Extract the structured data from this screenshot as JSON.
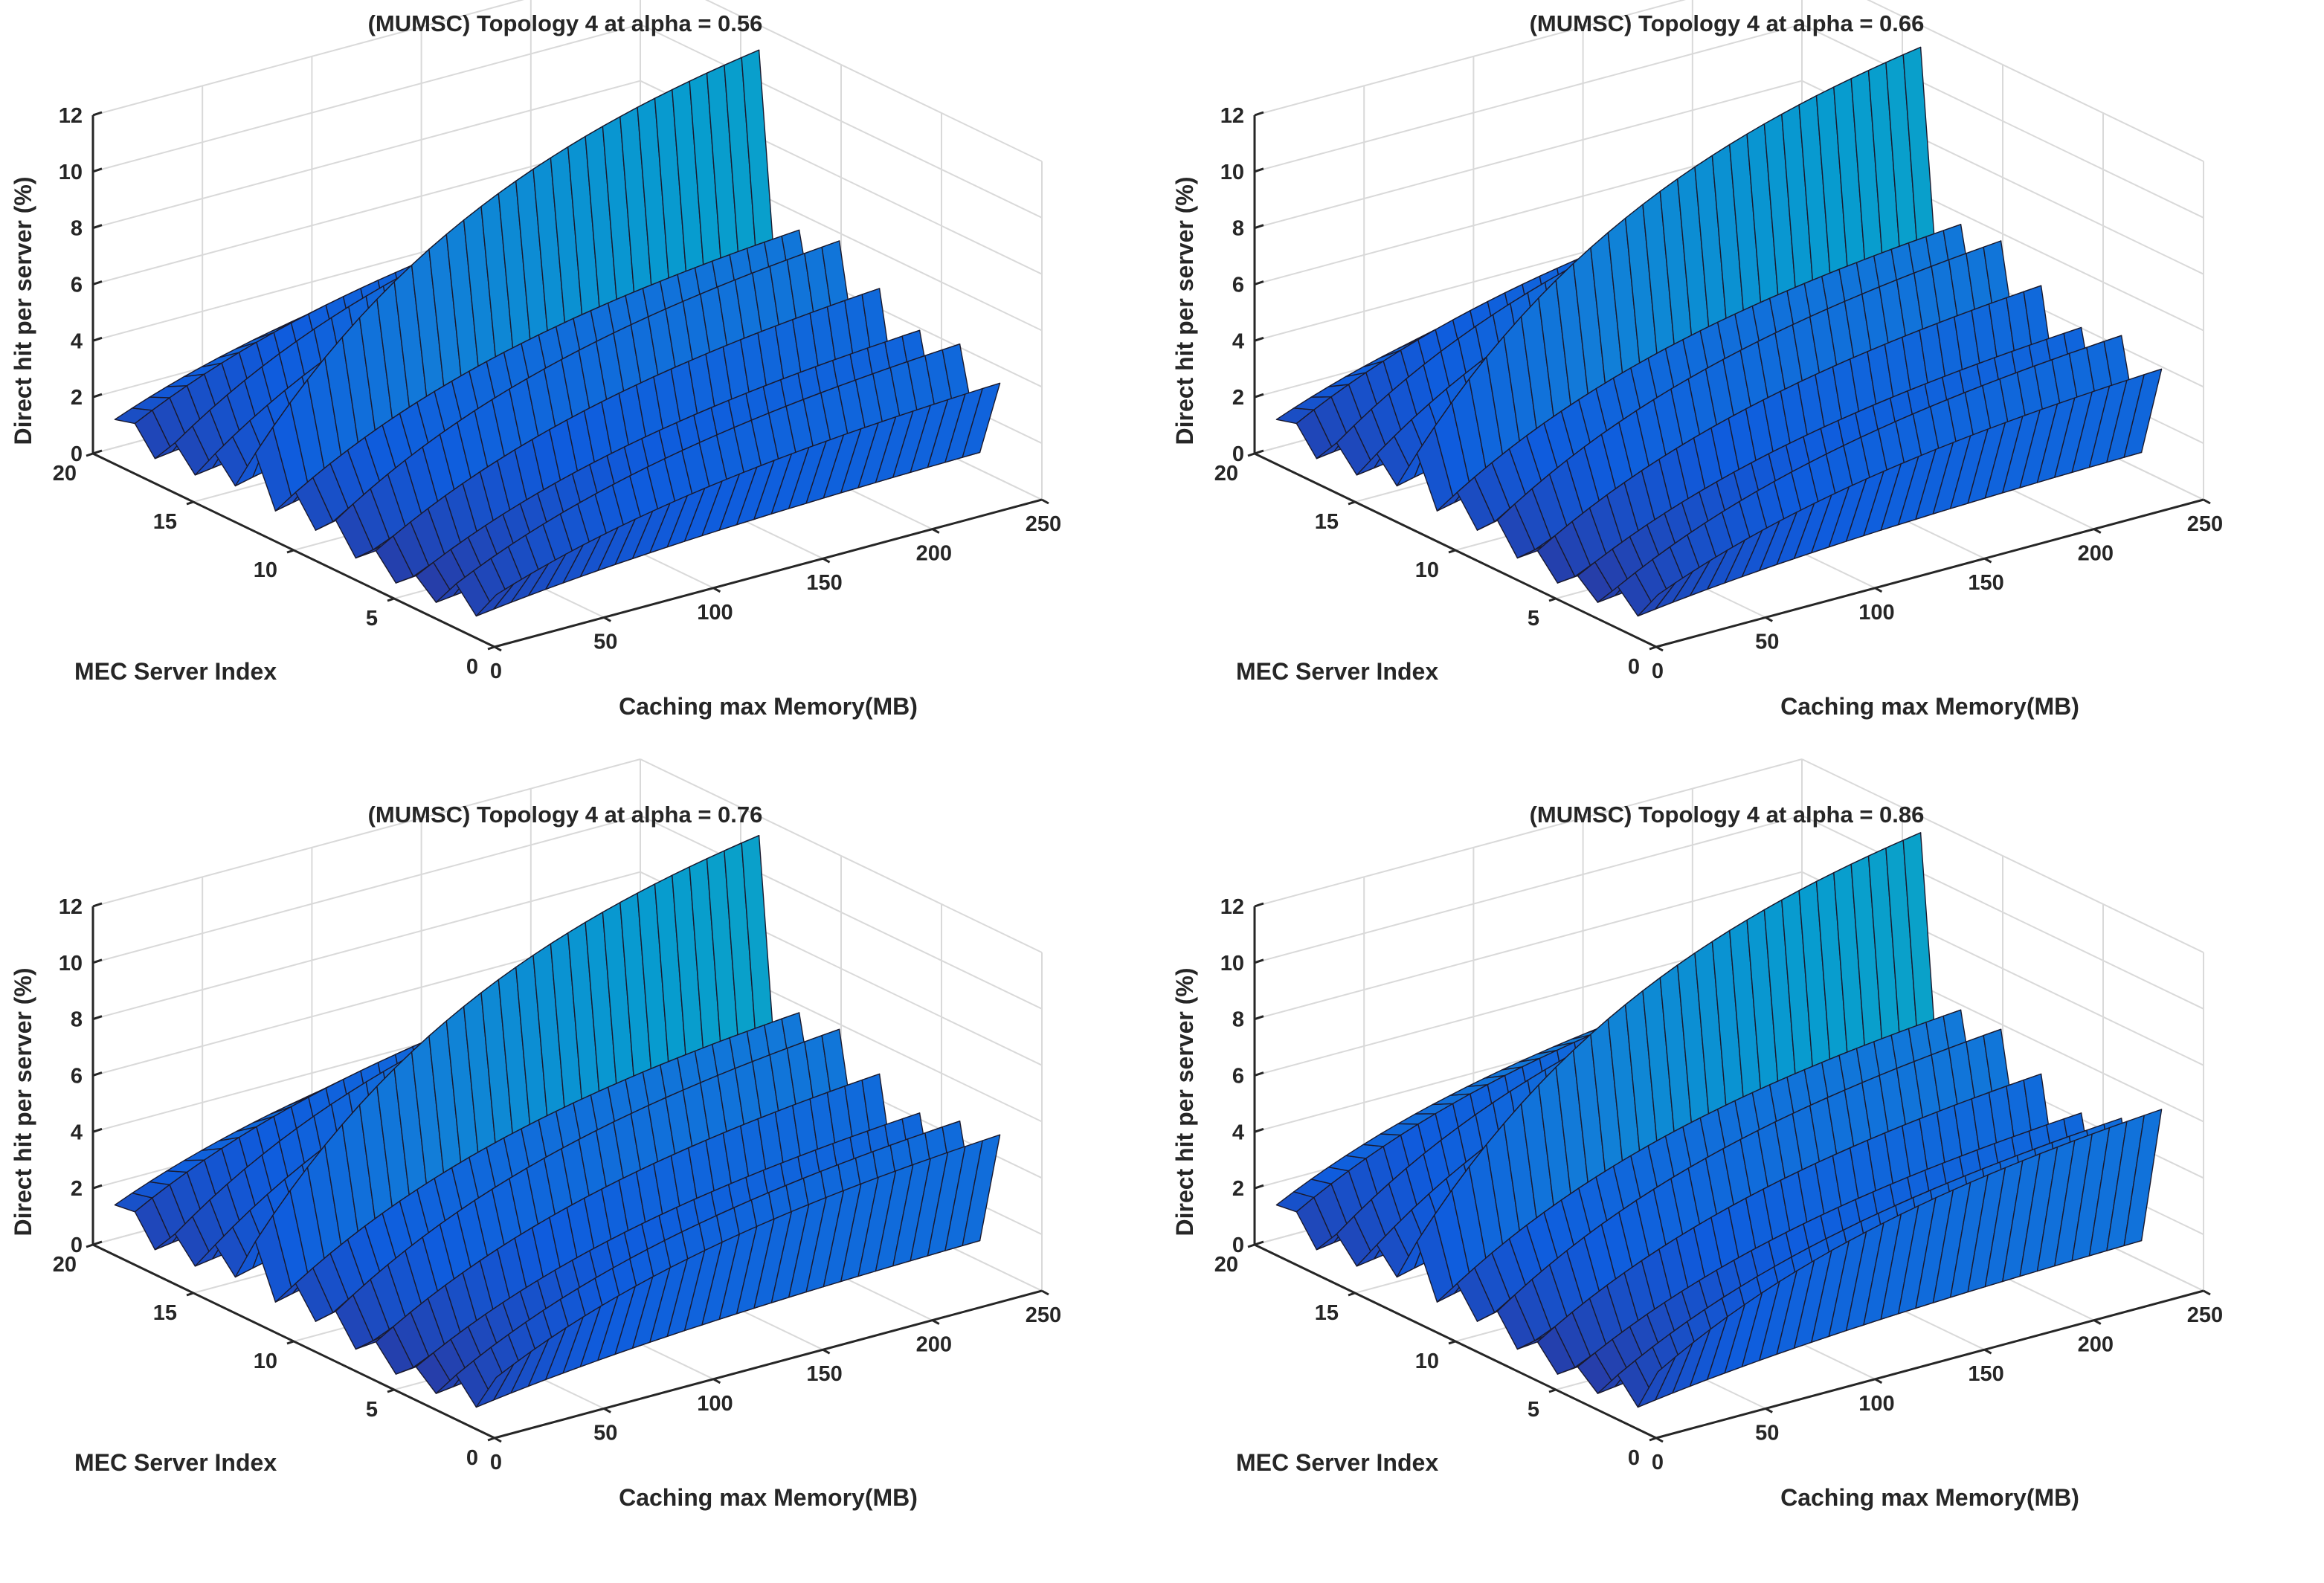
{
  "chart_data": [
    {
      "type": "surface3d",
      "title": "(MUMSC) Topology 4 at alpha = 0.56",
      "alpha": 0.56,
      "zlabel": "Direct hit per server (%)",
      "ylabel": "MEC Server Index",
      "xlabel": "Caching max Memory(MB)",
      "xlim": [
        0,
        250
      ],
      "ylim": [
        0,
        20
      ],
      "zlim": [
        0,
        12
      ],
      "xticks": [
        0,
        50,
        100,
        150,
        200,
        250
      ],
      "yticks": [
        0,
        5,
        10,
        15,
        20
      ],
      "zticks": [
        0,
        2,
        4,
        6,
        8,
        10,
        12
      ],
      "memory_MB": [
        10,
        240
      ],
      "server_profiles": [
        {
          "server": 1,
          "hit_min": 1.3,
          "hit_max": 4.0
        },
        {
          "server": 2,
          "hit_min": 0.2,
          "hit_max": 1.2
        },
        {
          "server": 3,
          "hit_min": 1.0,
          "hit_max": 4.7
        },
        {
          "server": 4,
          "hit_min": 0.0,
          "hit_max": 0.9
        },
        {
          "server": 5,
          "hit_min": 0.6,
          "hit_max": 4.5
        },
        {
          "server": 6,
          "hit_min": 0.0,
          "hit_max": 0.8
        },
        {
          "server": 7,
          "hit_min": 0.8,
          "hit_max": 5.3
        },
        {
          "server": 8,
          "hit_min": 0.2,
          "hit_max": 1.8
        },
        {
          "server": 9,
          "hit_min": 1.2,
          "hit_max": 6.3
        },
        {
          "server": 10,
          "hit_min": 0.5,
          "hit_max": 2.2
        },
        {
          "server": 11,
          "hit_min": 1.5,
          "hit_max": 6.0
        },
        {
          "server": 12,
          "hit_min": 0.5,
          "hit_max": 2.2
        },
        {
          "server": 13,
          "hit_min": 2.2,
          "hit_max": 11.7
        },
        {
          "server": 14,
          "hit_min": 0.7,
          "hit_max": 2.5
        },
        {
          "server": 15,
          "hit_min": 1.5,
          "hit_max": 7.0
        },
        {
          "server": 16,
          "hit_min": 0.4,
          "hit_max": 1.5
        },
        {
          "server": 17,
          "hit_min": 1.2,
          "hit_max": 6.6
        },
        {
          "server": 18,
          "hit_min": 0.3,
          "hit_max": 1.3
        },
        {
          "server": 19,
          "hit_min": 1.2,
          "hit_max": 5.0
        },
        {
          "server": 20,
          "hit_min": 1.0,
          "hit_max": 4.0
        }
      ]
    },
    {
      "type": "surface3d",
      "title": "(MUMSC) Topology 4 at alpha = 0.66",
      "alpha": 0.66,
      "zlabel": "Direct hit per server (%)",
      "ylabel": "MEC Server Index",
      "xlabel": "Caching max Memory(MB)",
      "xlim": [
        0,
        250
      ],
      "ylim": [
        0,
        20
      ],
      "zlim": [
        0,
        12
      ],
      "xticks": [
        0,
        50,
        100,
        150,
        200,
        250
      ],
      "yticks": [
        0,
        5,
        10,
        15,
        20
      ],
      "zticks": [
        0,
        2,
        4,
        6,
        8,
        10,
        12
      ],
      "memory_MB": [
        10,
        240
      ],
      "server_profiles": [
        {
          "server": 1,
          "hit_min": 1.3,
          "hit_max": 4.5
        },
        {
          "server": 2,
          "hit_min": 0.2,
          "hit_max": 1.2
        },
        {
          "server": 3,
          "hit_min": 0.9,
          "hit_max": 5.0
        },
        {
          "server": 4,
          "hit_min": 0.0,
          "hit_max": 0.9
        },
        {
          "server": 5,
          "hit_min": 0.6,
          "hit_max": 4.6
        },
        {
          "server": 6,
          "hit_min": 0.0,
          "hit_max": 0.8
        },
        {
          "server": 7,
          "hit_min": 0.8,
          "hit_max": 5.4
        },
        {
          "server": 8,
          "hit_min": 0.2,
          "hit_max": 1.8
        },
        {
          "server": 9,
          "hit_min": 1.2,
          "hit_max": 6.3
        },
        {
          "server": 10,
          "hit_min": 0.5,
          "hit_max": 2.2
        },
        {
          "server": 11,
          "hit_min": 1.5,
          "hit_max": 6.2
        },
        {
          "server": 12,
          "hit_min": 0.5,
          "hit_max": 2.2
        },
        {
          "server": 13,
          "hit_min": 2.2,
          "hit_max": 11.8
        },
        {
          "server": 14,
          "hit_min": 0.7,
          "hit_max": 2.5
        },
        {
          "server": 15,
          "hit_min": 1.5,
          "hit_max": 7.2
        },
        {
          "server": 16,
          "hit_min": 0.4,
          "hit_max": 1.5
        },
        {
          "server": 17,
          "hit_min": 1.2,
          "hit_max": 6.8
        },
        {
          "server": 18,
          "hit_min": 0.3,
          "hit_max": 1.3
        },
        {
          "server": 19,
          "hit_min": 1.2,
          "hit_max": 5.2
        },
        {
          "server": 20,
          "hit_min": 1.0,
          "hit_max": 4.0
        }
      ]
    },
    {
      "type": "surface3d",
      "title": "(MUMSC) Topology 4 at alpha = 0.76",
      "alpha": 0.76,
      "zlabel": "Direct hit per server (%)",
      "ylabel": "MEC Server Index",
      "xlabel": "Caching max Memory(MB)",
      "xlim": [
        0,
        250
      ],
      "ylim": [
        0,
        20
      ],
      "zlim": [
        0,
        12
      ],
      "xticks": [
        0,
        50,
        100,
        150,
        200,
        250
      ],
      "yticks": [
        0,
        5,
        10,
        15,
        20
      ],
      "zticks": [
        0,
        2,
        4,
        6,
        8,
        10,
        12
      ],
      "memory_MB": [
        10,
        240
      ],
      "server_profiles": [
        {
          "server": 1,
          "hit_min": 1.6,
          "hit_max": 5.4
        },
        {
          "server": 2,
          "hit_min": 0.2,
          "hit_max": 1.3
        },
        {
          "server": 3,
          "hit_min": 1.0,
          "hit_max": 5.2
        },
        {
          "server": 4,
          "hit_min": 0.0,
          "hit_max": 1.0
        },
        {
          "server": 5,
          "hit_min": 0.6,
          "hit_max": 4.8
        },
        {
          "server": 6,
          "hit_min": 0.0,
          "hit_max": 0.9
        },
        {
          "server": 7,
          "hit_min": 0.8,
          "hit_max": 5.5
        },
        {
          "server": 8,
          "hit_min": 0.2,
          "hit_max": 1.9
        },
        {
          "server": 9,
          "hit_min": 1.2,
          "hit_max": 6.4
        },
        {
          "server": 10,
          "hit_min": 0.5,
          "hit_max": 2.3
        },
        {
          "server": 11,
          "hit_min": 1.5,
          "hit_max": 6.3
        },
        {
          "server": 12,
          "hit_min": 0.5,
          "hit_max": 2.3
        },
        {
          "server": 13,
          "hit_min": 2.3,
          "hit_max": 11.9
        },
        {
          "server": 14,
          "hit_min": 0.7,
          "hit_max": 2.6
        },
        {
          "server": 15,
          "hit_min": 1.5,
          "hit_max": 7.3
        },
        {
          "server": 16,
          "hit_min": 0.4,
          "hit_max": 1.6
        },
        {
          "server": 17,
          "hit_min": 1.2,
          "hit_max": 6.9
        },
        {
          "server": 18,
          "hit_min": 0.3,
          "hit_max": 1.4
        },
        {
          "server": 19,
          "hit_min": 1.3,
          "hit_max": 5.4
        },
        {
          "server": 20,
          "hit_min": 1.2,
          "hit_max": 4.4
        }
      ]
    },
    {
      "type": "surface3d",
      "title": "(MUMSC) Topology 4 at alpha = 0.86",
      "alpha": 0.86,
      "zlabel": "Direct hit per server (%)",
      "ylabel": "MEC Server Index",
      "xlabel": "Caching max Memory(MB)",
      "xlim": [
        0,
        250
      ],
      "ylim": [
        0,
        20
      ],
      "zlim": [
        0,
        12
      ],
      "xticks": [
        0,
        50,
        100,
        150,
        200,
        250
      ],
      "yticks": [
        0,
        5,
        10,
        15,
        20
      ],
      "zticks": [
        0,
        2,
        4,
        6,
        8,
        10,
        12
      ],
      "memory_MB": [
        10,
        240
      ],
      "server_profiles": [
        {
          "server": 1,
          "hit_min": 1.8,
          "hit_max": 6.3
        },
        {
          "server": 2,
          "hit_min": 0.2,
          "hit_max": 1.3
        },
        {
          "server": 3,
          "hit_min": 1.0,
          "hit_max": 5.3
        },
        {
          "server": 4,
          "hit_min": 0.0,
          "hit_max": 1.0
        },
        {
          "server": 5,
          "hit_min": 0.6,
          "hit_max": 4.8
        },
        {
          "server": 6,
          "hit_min": 0.0,
          "hit_max": 0.9
        },
        {
          "server": 7,
          "hit_min": 0.8,
          "hit_max": 5.5
        },
        {
          "server": 8,
          "hit_min": 0.2,
          "hit_max": 1.9
        },
        {
          "server": 9,
          "hit_min": 1.2,
          "hit_max": 6.4
        },
        {
          "server": 10,
          "hit_min": 0.5,
          "hit_max": 2.3
        },
        {
          "server": 11,
          "hit_min": 1.5,
          "hit_max": 6.4
        },
        {
          "server": 12,
          "hit_min": 0.5,
          "hit_max": 2.3
        },
        {
          "server": 13,
          "hit_min": 2.3,
          "hit_max": 12.0
        },
        {
          "server": 14,
          "hit_min": 0.7,
          "hit_max": 2.6
        },
        {
          "server": 15,
          "hit_min": 1.5,
          "hit_max": 7.4
        },
        {
          "server": 16,
          "hit_min": 0.4,
          "hit_max": 1.6
        },
        {
          "server": 17,
          "hit_min": 1.2,
          "hit_max": 7.0
        },
        {
          "server": 18,
          "hit_min": 0.3,
          "hit_max": 1.4
        },
        {
          "server": 19,
          "hit_min": 1.3,
          "hit_max": 5.6
        },
        {
          "server": 20,
          "hit_min": 1.2,
          "hit_max": 5.0
        }
      ]
    }
  ]
}
